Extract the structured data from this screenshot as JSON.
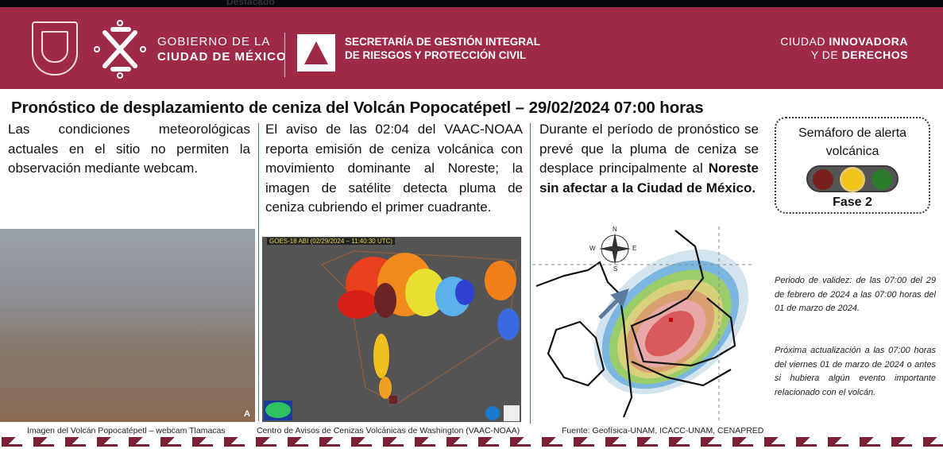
{
  "topbar": {
    "nav_item": "Destacado"
  },
  "header": {
    "gov_line1": "GOBIERNO DE LA",
    "gov_line2": "CIUDAD DE MÉXICO",
    "agency_line1": "SECRETARÍA DE GESTIÓN INTEGRAL",
    "agency_line2": "DE RIESGOS Y PROTECCIÓN CIVIL",
    "slogan_line1_a": "CIUDAD ",
    "slogan_line1_b": "INNOVADORA",
    "slogan_line2_a": "Y DE ",
    "slogan_line2_b": "DERECHOS",
    "brand_color": "#9f2a48"
  },
  "title": "Pronóstico de desplazamiento de ceniza del Volcán Popocatépetl – 29/02/2024 07:00 horas",
  "columns": {
    "webcam_text": "Las condiciones meteorológicas actuales en el sitio no permiten la observación mediante webcam.",
    "vaac_text": "El aviso de las 02:04 del VAAC-NOAA reporta emisión de ceniza volcánica con movimiento dominante al Noreste; la imagen de satélite detecta pluma de ceniza cubriendo el primer cuadrante.",
    "forecast_text": "Durante el período de pronóstico se prevé que la pluma de ceniza se desplace principalmente al ",
    "forecast_bold": "Noreste sin afectar a la Ciudad de México."
  },
  "semaforo": {
    "title": "Semáforo de alerta volcánica",
    "phase": "Fase 2",
    "active_light": "yellow",
    "colors": {
      "red": "#7a1f1f",
      "yellow": "#f0c419",
      "green": "#2c7a2c"
    }
  },
  "images": {
    "satellite_label": "GOES-18 ABI (02/29/2024 – 11:40:30 UTC)",
    "webcam_corner": "A",
    "compass": {
      "n": "N",
      "s": "S",
      "e": "E",
      "w": "W"
    }
  },
  "notes": {
    "validity": "Periodo de validez: de las 07:00 del 29 de febrero de 2024 a las 07:00 horas del 01 de marzo de 2024.",
    "next_update": "Próxima actualización a las 07:00 horas del viernes 01 de marzo de 2024 o antes si hubiera algún evento importante relacionado con el volcán."
  },
  "captions": {
    "webcam": "Imagen del Volcán Popocatépetl – webcam Tlamacas",
    "vaac": "Centro de Avisos de Cenizas Volcánicas de Washington (VAAC-NOAA)",
    "source": "Fuente: Geofísica-UNAM, ICACC-UNAM, CENAPRED"
  }
}
